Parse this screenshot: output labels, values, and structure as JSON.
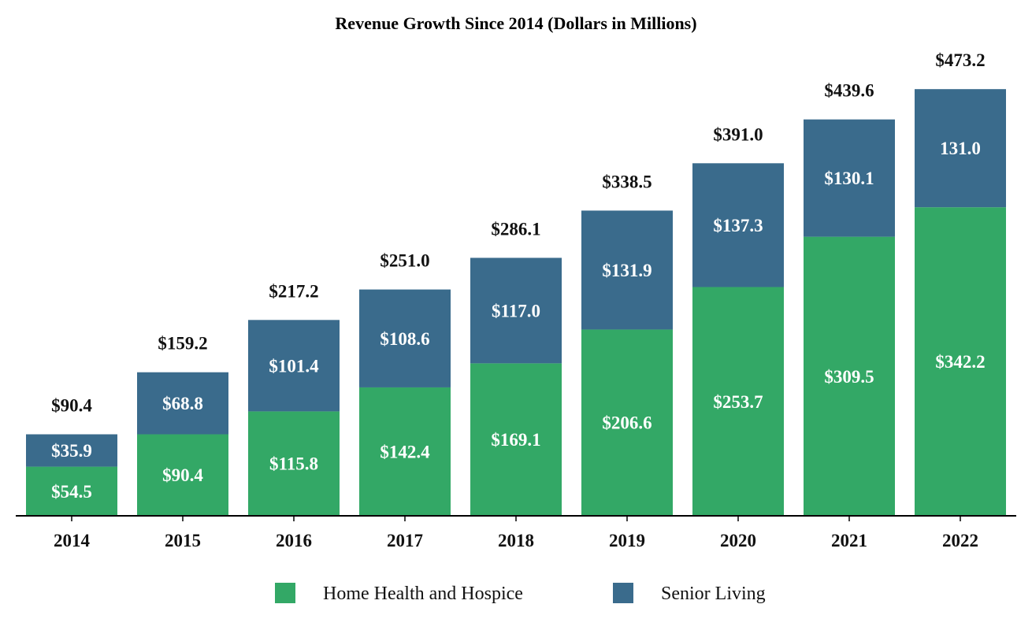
{
  "chart_data": {
    "type": "bar",
    "stacked": true,
    "title": "Revenue Growth Since 2014 (Dollars in Millions)",
    "xlabel": "",
    "ylabel": "",
    "ylim": [
      0,
      500
    ],
    "grid": false,
    "categories": [
      "2014",
      "2015",
      "2016",
      "2017",
      "2018",
      "2019",
      "2020",
      "2021",
      "2022"
    ],
    "series": [
      {
        "name": "Home Health and Hospice",
        "color": "#33a866",
        "values": [
          54.5,
          90.4,
          115.8,
          142.4,
          169.1,
          206.6,
          253.7,
          309.5,
          342.2
        ],
        "labels": [
          "$54.5",
          "$90.4",
          "$115.8",
          "$142.4",
          "$169.1",
          "$206.6",
          "$253.7",
          "$309.5",
          "$342.2"
        ]
      },
      {
        "name": "Senior Living",
        "color": "#3a6b8c",
        "values": [
          35.9,
          68.8,
          101.4,
          108.6,
          117.0,
          131.9,
          137.3,
          130.1,
          131.0
        ],
        "labels": [
          "$35.9",
          "$68.8",
          "$101.4",
          "$108.6",
          "$117.0",
          "$131.9",
          "$137.3",
          "$130.1",
          "131.0"
        ]
      }
    ],
    "totals": [
      90.4,
      159.2,
      217.2,
      251.0,
      286.1,
      338.5,
      391.0,
      439.6,
      473.2
    ],
    "total_labels": [
      "$90.4",
      "$159.2",
      "$217.2",
      "$251.0",
      "$286.1",
      "$338.5",
      "$391.0",
      "$439.6",
      "$473.2"
    ],
    "legend_position": "bottom-center"
  }
}
